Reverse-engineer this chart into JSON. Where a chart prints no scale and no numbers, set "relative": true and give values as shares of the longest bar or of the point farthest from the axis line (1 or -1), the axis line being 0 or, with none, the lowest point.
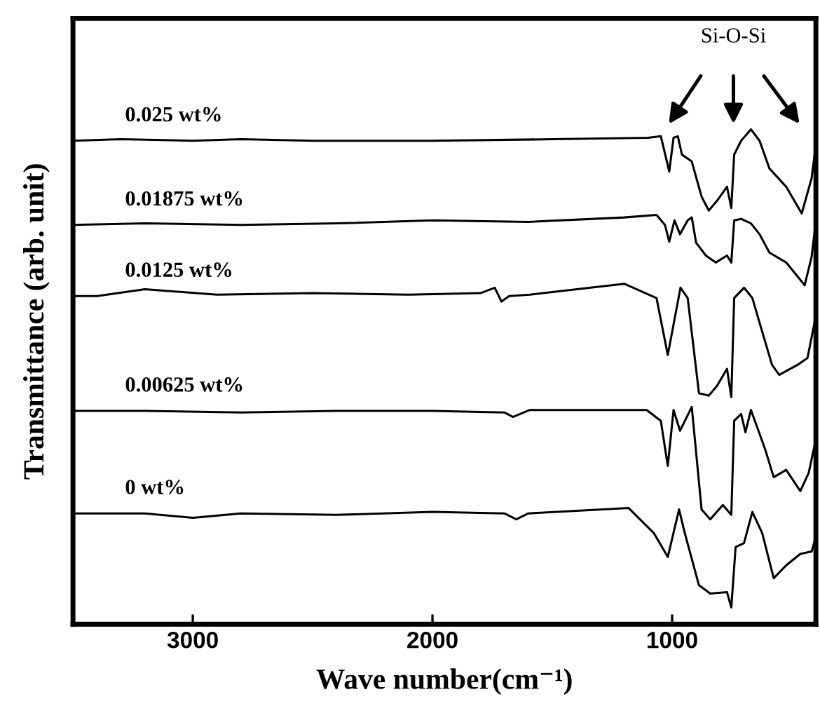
{
  "chart_data": {
    "type": "line",
    "relative": true,
    "xlabel": "Wave number(cm⁻¹)",
    "ylabel": "Transmittance (arb. unit)",
    "xlim": [
      3500,
      400
    ],
    "xticks": [
      3000,
      2000,
      1000
    ],
    "grid": false,
    "marker": "none",
    "line_style": "solid",
    "tick_labels": "x",
    "annotations": [
      "Si-O-Si"
    ],
    "series": [
      {
        "name": "0.025 wt%",
        "color": "#000000",
        "x": [
          3500,
          3300,
          3000,
          2800,
          2500,
          2000,
          1500,
          1100,
          1047,
          1012,
          994,
          976,
          959,
          918,
          877,
          847,
          812,
          771,
          753,
          741,
          712,
          671,
          635,
          594,
          524,
          459,
          418,
          400
        ],
        "values": [
          0.977,
          0.98,
          0.977,
          0.98,
          0.977,
          0.977,
          0.98,
          0.983,
          0.986,
          0.915,
          0.983,
          0.986,
          0.949,
          0.935,
          0.864,
          0.836,
          0.856,
          0.884,
          0.841,
          0.949,
          0.977,
          1.0,
          0.977,
          0.921,
          0.884,
          0.83,
          0.901,
          0.969
        ]
      },
      {
        "name": "0.01875 wt%",
        "color": "#000000",
        "x": [
          3500,
          3200,
          2800,
          2400,
          2000,
          1600,
          1200,
          1065,
          1030,
          1012,
          990,
          967,
          935,
          918,
          900,
          859,
          818,
          771,
          753,
          741,
          712,
          671,
          635,
          594,
          524,
          447,
          418,
          400
        ],
        "values": [
          0.807,
          0.81,
          0.807,
          0.81,
          0.816,
          0.813,
          0.822,
          0.827,
          0.807,
          0.773,
          0.816,
          0.788,
          0.816,
          0.822,
          0.771,
          0.745,
          0.731,
          0.745,
          0.731,
          0.816,
          0.819,
          0.81,
          0.788,
          0.751,
          0.731,
          0.685,
          0.742,
          0.816
        ]
      },
      {
        "name": "0.0125 wt%",
        "color": "#000000",
        "x": [
          3500,
          3400,
          3200,
          2900,
          2500,
          2100,
          1800,
          1740,
          1712,
          1680,
          1594,
          1200,
          1065,
          1018,
          965,
          935,
          888,
          847,
          812,
          771,
          753,
          741,
          700,
          665,
          635,
          583,
          553,
          477,
          435,
          406
        ],
        "values": [
          0.663,
          0.663,
          0.677,
          0.666,
          0.669,
          0.666,
          0.669,
          0.68,
          0.652,
          0.663,
          0.666,
          0.688,
          0.659,
          0.544,
          0.68,
          0.659,
          0.467,
          0.462,
          0.482,
          0.516,
          0.459,
          0.659,
          0.68,
          0.659,
          0.609,
          0.524,
          0.504,
          0.524,
          0.538,
          0.609
        ]
      },
      {
        "name": "0.00625 wt%",
        "color": "#000000",
        "x": [
          3500,
          3200,
          2800,
          2400,
          2000,
          1700,
          1664,
          1594,
          1106,
          1047,
          1018,
          994,
          967,
          918,
          877,
          841,
          788,
          753,
          741,
          712,
          694,
          671,
          612,
          576,
          524,
          465,
          430,
          400
        ],
        "values": [
          0.431,
          0.431,
          0.428,
          0.431,
          0.431,
          0.428,
          0.419,
          0.433,
          0.433,
          0.411,
          0.32,
          0.433,
          0.391,
          0.439,
          0.232,
          0.212,
          0.241,
          0.221,
          0.411,
          0.425,
          0.388,
          0.433,
          0.354,
          0.297,
          0.312,
          0.269,
          0.306,
          0.374
        ]
      },
      {
        "name": "0 wt%",
        "color": "#000000",
        "x": [
          3500,
          3200,
          3000,
          2800,
          2400,
          2000,
          1700,
          1650,
          1600,
          1182,
          1076,
          1018,
          971,
          947,
          888,
          841,
          771,
          753,
          735,
          700,
          665,
          624,
          576,
          524,
          465,
          418,
          400
        ],
        "values": [
          0.224,
          0.224,
          0.215,
          0.224,
          0.221,
          0.227,
          0.224,
          0.212,
          0.224,
          0.235,
          0.184,
          0.136,
          0.232,
          0.184,
          0.079,
          0.062,
          0.065,
          0.034,
          0.156,
          0.164,
          0.227,
          0.184,
          0.093,
          0.119,
          0.142,
          0.147,
          0.176
        ]
      }
    ]
  }
}
